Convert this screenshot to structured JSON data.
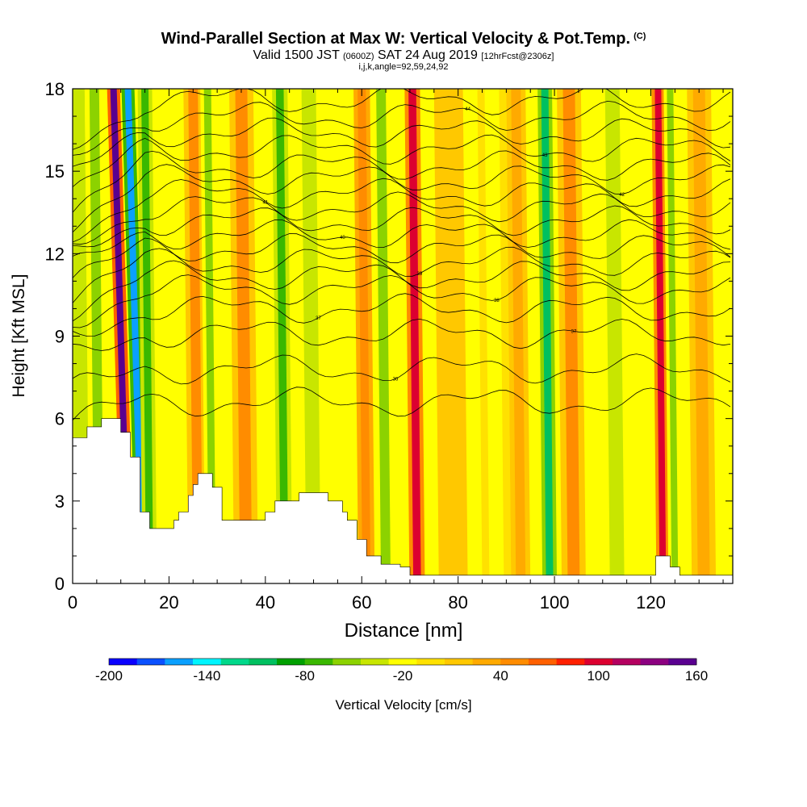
{
  "header": {
    "title": "Wind-Parallel Section at Max W: Vertical Velocity & Pot.Temp.",
    "title_units": "(C)",
    "valid_prefix": "Valid 1500 JST",
    "valid_utc": "(0600Z)",
    "valid_date": "SAT 24 Aug 2019",
    "forecast": "[12hrFcst@2306z]",
    "indices": "i,j,k,angle=92,59,24,92"
  },
  "chart_data": {
    "type": "heatmap",
    "xlabel": "Distance [nm]",
    "ylabel": "Height [Kft MSL]",
    "xlim": [
      0,
      137
    ],
    "ylim": [
      0,
      18
    ],
    "x_ticks": [
      0,
      20,
      40,
      60,
      80,
      100,
      120
    ],
    "y_ticks": [
      0,
      3,
      6,
      9,
      12,
      15,
      18
    ],
    "colorbar": {
      "label": "Vertical Velocity [cm/s]",
      "tick_values": [
        -200,
        -140,
        -80,
        -20,
        40,
        100,
        160
      ],
      "range": [
        -200,
        160
      ],
      "colors": [
        "#0a00ff",
        "#0b50ff",
        "#0aa0ff",
        "#00f5ff",
        "#00d88a",
        "#00c060",
        "#00a000",
        "#3ab800",
        "#8cd200",
        "#c8e600",
        "#ffff00",
        "#ffe100",
        "#ffc800",
        "#ffaa00",
        "#ff8c00",
        "#ff6000",
        "#ff2000",
        "#dc0030",
        "#b40060",
        "#8c0080",
        "#5a0090"
      ]
    },
    "velocity_bands": [
      {
        "x": 2,
        "w": 3,
        "v": -40
      },
      {
        "x": 5.5,
        "w": 2,
        "v": -50
      },
      {
        "x": 11.5,
        "w": 1.3,
        "v": 160
      },
      {
        "x": 14.5,
        "w": 1.1,
        "v": -170
      },
      {
        "x": 16,
        "w": 1.5,
        "v": -80
      },
      {
        "x": 26,
        "w": 2.0,
        "v": 50
      },
      {
        "x": 29,
        "w": 1.5,
        "v": -60
      },
      {
        "x": 36,
        "w": 2.5,
        "v": 55
      },
      {
        "x": 44,
        "w": 1.6,
        "v": -70
      },
      {
        "x": 50,
        "w": 3,
        "v": -30
      },
      {
        "x": 61,
        "w": 1.7,
        "v": 60
      },
      {
        "x": 65,
        "w": 2,
        "v": -50
      },
      {
        "x": 71.5,
        "w": 1.6,
        "v": 100
      },
      {
        "x": 79,
        "w": 3,
        "v": 20
      },
      {
        "x": 88,
        "w": 3,
        "v": -20
      },
      {
        "x": 93,
        "w": 2,
        "v": 40
      },
      {
        "x": 99,
        "w": 1.5,
        "v": -110
      },
      {
        "x": 104,
        "w": 2.5,
        "v": 45
      },
      {
        "x": 113,
        "w": 3,
        "v": -30
      },
      {
        "x": 122.5,
        "w": 1.3,
        "v": 100
      },
      {
        "x": 125,
        "w": 1.3,
        "v": -60
      },
      {
        "x": 131,
        "w": 2.5,
        "v": 40
      }
    ],
    "terrain_kft": [
      [
        0,
        5.3
      ],
      [
        3,
        5.3
      ],
      [
        3,
        5.7
      ],
      [
        6,
        5.7
      ],
      [
        6,
        6.0
      ],
      [
        10,
        6.0
      ],
      [
        10,
        5.5
      ],
      [
        12,
        5.5
      ],
      [
        12,
        4.6
      ],
      [
        14,
        4.6
      ],
      [
        14,
        2.6
      ],
      [
        16,
        2.6
      ],
      [
        16,
        2.0
      ],
      [
        21,
        2.0
      ],
      [
        21,
        2.3
      ],
      [
        22,
        2.3
      ],
      [
        22,
        2.6
      ],
      [
        24,
        2.6
      ],
      [
        24,
        3.2
      ],
      [
        25,
        3.2
      ],
      [
        25,
        3.6
      ],
      [
        26,
        3.6
      ],
      [
        26,
        4.0
      ],
      [
        29,
        4.0
      ],
      [
        29,
        3.5
      ],
      [
        31,
        3.5
      ],
      [
        31,
        2.3
      ],
      [
        40,
        2.3
      ],
      [
        40,
        2.6
      ],
      [
        42,
        2.6
      ],
      [
        42,
        3.0
      ],
      [
        47,
        3.0
      ],
      [
        47,
        3.3
      ],
      [
        53,
        3.3
      ],
      [
        53,
        3.0
      ],
      [
        56,
        3.0
      ],
      [
        56,
        2.6
      ],
      [
        57,
        2.6
      ],
      [
        57,
        2.3
      ],
      [
        59,
        2.3
      ],
      [
        59,
        1.6
      ],
      [
        61,
        1.6
      ],
      [
        61,
        1.0
      ],
      [
        64,
        1.0
      ],
      [
        64,
        0.7
      ],
      [
        68,
        0.7
      ],
      [
        68,
        0.6
      ],
      [
        70,
        0.6
      ],
      [
        70,
        0.3
      ],
      [
        121,
        0.3
      ],
      [
        121,
        1.0
      ],
      [
        124,
        1.0
      ],
      [
        124,
        0.6
      ],
      [
        126,
        0.6
      ],
      [
        126,
        0.3
      ],
      [
        137,
        0.3
      ]
    ],
    "theta_contours": [
      {
        "base": 6.6,
        "label": ""
      },
      {
        "base": 7.8,
        "label": "36"
      },
      {
        "base": 9.1,
        "label": "37"
      },
      {
        "base": 10.0,
        "label": "37"
      },
      {
        "base": 10.7,
        "label": "38"
      },
      {
        "base": 11.2,
        "label": ""
      },
      {
        "base": 11.7,
        "label": "39"
      },
      {
        "base": 12.2,
        "label": ""
      },
      {
        "base": 12.7,
        "label": "40"
      },
      {
        "base": 13.2,
        "label": ""
      },
      {
        "base": 13.7,
        "label": "41"
      },
      {
        "base": 14.2,
        "label": ""
      },
      {
        "base": 14.7,
        "label": "42"
      },
      {
        "base": 15.2,
        "label": ""
      },
      {
        "base": 15.8,
        "label": "43"
      },
      {
        "base": 16.4,
        "label": ""
      },
      {
        "base": 17.0,
        "label": "44"
      },
      {
        "base": 17.6,
        "label": ""
      }
    ]
  }
}
